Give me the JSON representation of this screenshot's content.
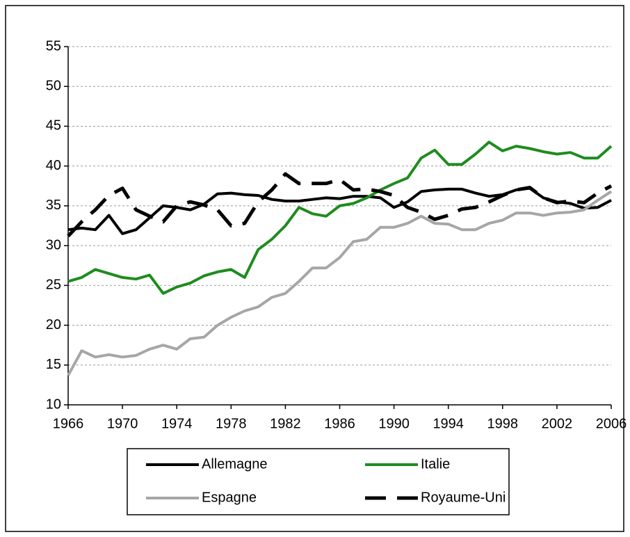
{
  "chart_data": {
    "type": "line",
    "x": [
      1966,
      1967,
      1968,
      1969,
      1970,
      1971,
      1972,
      1973,
      1974,
      1975,
      1976,
      1977,
      1978,
      1979,
      1980,
      1981,
      1982,
      1983,
      1984,
      1985,
      1986,
      1987,
      1988,
      1989,
      1990,
      1991,
      1992,
      1993,
      1994,
      1995,
      1996,
      1997,
      1998,
      1999,
      2000,
      2001,
      2002,
      2003,
      2004,
      2005,
      2006
    ],
    "series": [
      {
        "name": "Allemagne",
        "color": "#000000",
        "dash": false,
        "values": [
          32,
          32.2,
          32,
          33.8,
          31.5,
          32,
          33.5,
          35,
          34.8,
          34.5,
          35.2,
          36.5,
          36.6,
          36.4,
          36.3,
          35.8,
          35.6,
          35.6,
          35.8,
          36,
          35.9,
          36.2,
          36.2,
          36,
          34.8,
          35.5,
          36.8,
          37,
          37.1,
          37.1,
          36.6,
          36.2,
          36.4,
          37,
          37.2,
          36,
          35.5,
          35.3,
          34.7,
          34.8,
          35.7
        ]
      },
      {
        "name": "Italie",
        "color": "#1e8c1e",
        "dash": false,
        "values": [
          25.5,
          26,
          27,
          26.5,
          26,
          25.8,
          26.3,
          24,
          24.8,
          25.3,
          26.2,
          26.7,
          27,
          26,
          29.5,
          30.8,
          32.5,
          34.8,
          34,
          33.7,
          35,
          35.3,
          36,
          37,
          37.8,
          38.5,
          41,
          42,
          40.2,
          40.2,
          41.5,
          43,
          41.9,
          42.5,
          42.2,
          41.8,
          41.5,
          41.7,
          41,
          41,
          42.5
        ]
      },
      {
        "name": "Espagne",
        "color": "#a6a6a6",
        "dash": false,
        "values": [
          13.7,
          16.8,
          16,
          16.3,
          16,
          16.2,
          17,
          17.5,
          17,
          18.3,
          18.5,
          20,
          21,
          21.8,
          22.3,
          23.5,
          24,
          25.5,
          27.2,
          27.2,
          28.5,
          30.5,
          30.8,
          32.3,
          32.3,
          32.8,
          33.7,
          32.8,
          32.7,
          32,
          32,
          32.8,
          33.2,
          34.1,
          34.1,
          33.8,
          34.1,
          34.2,
          34.5,
          35.7,
          36.8
        ]
      },
      {
        "name": "Royaume-Uni",
        "color": "#000000",
        "dash": true,
        "values": [
          31.2,
          33,
          34.5,
          36.3,
          37.2,
          34.5,
          33.7,
          33,
          35,
          35.5,
          35.1,
          34.5,
          32.5,
          32.8,
          35.5,
          37,
          39,
          37.8,
          37.8,
          37.8,
          38.3,
          37,
          37.1,
          36.8,
          36.3,
          34.8,
          34.2,
          33.3,
          33.8,
          34.6,
          34.8,
          35.5,
          36.3,
          37,
          37.3,
          36,
          35.4,
          35.6,
          35.4,
          36.6,
          37.5
        ]
      }
    ],
    "xlim": [
      1966,
      2006
    ],
    "xticks": [
      1966,
      1970,
      1974,
      1978,
      1982,
      1986,
      1990,
      1994,
      1998,
      2002,
      2006
    ],
    "ylim": [
      10,
      55
    ],
    "yticks": [
      10,
      15,
      20,
      25,
      30,
      35,
      40,
      45,
      50,
      55
    ],
    "grid": true,
    "legend": "bottom"
  }
}
